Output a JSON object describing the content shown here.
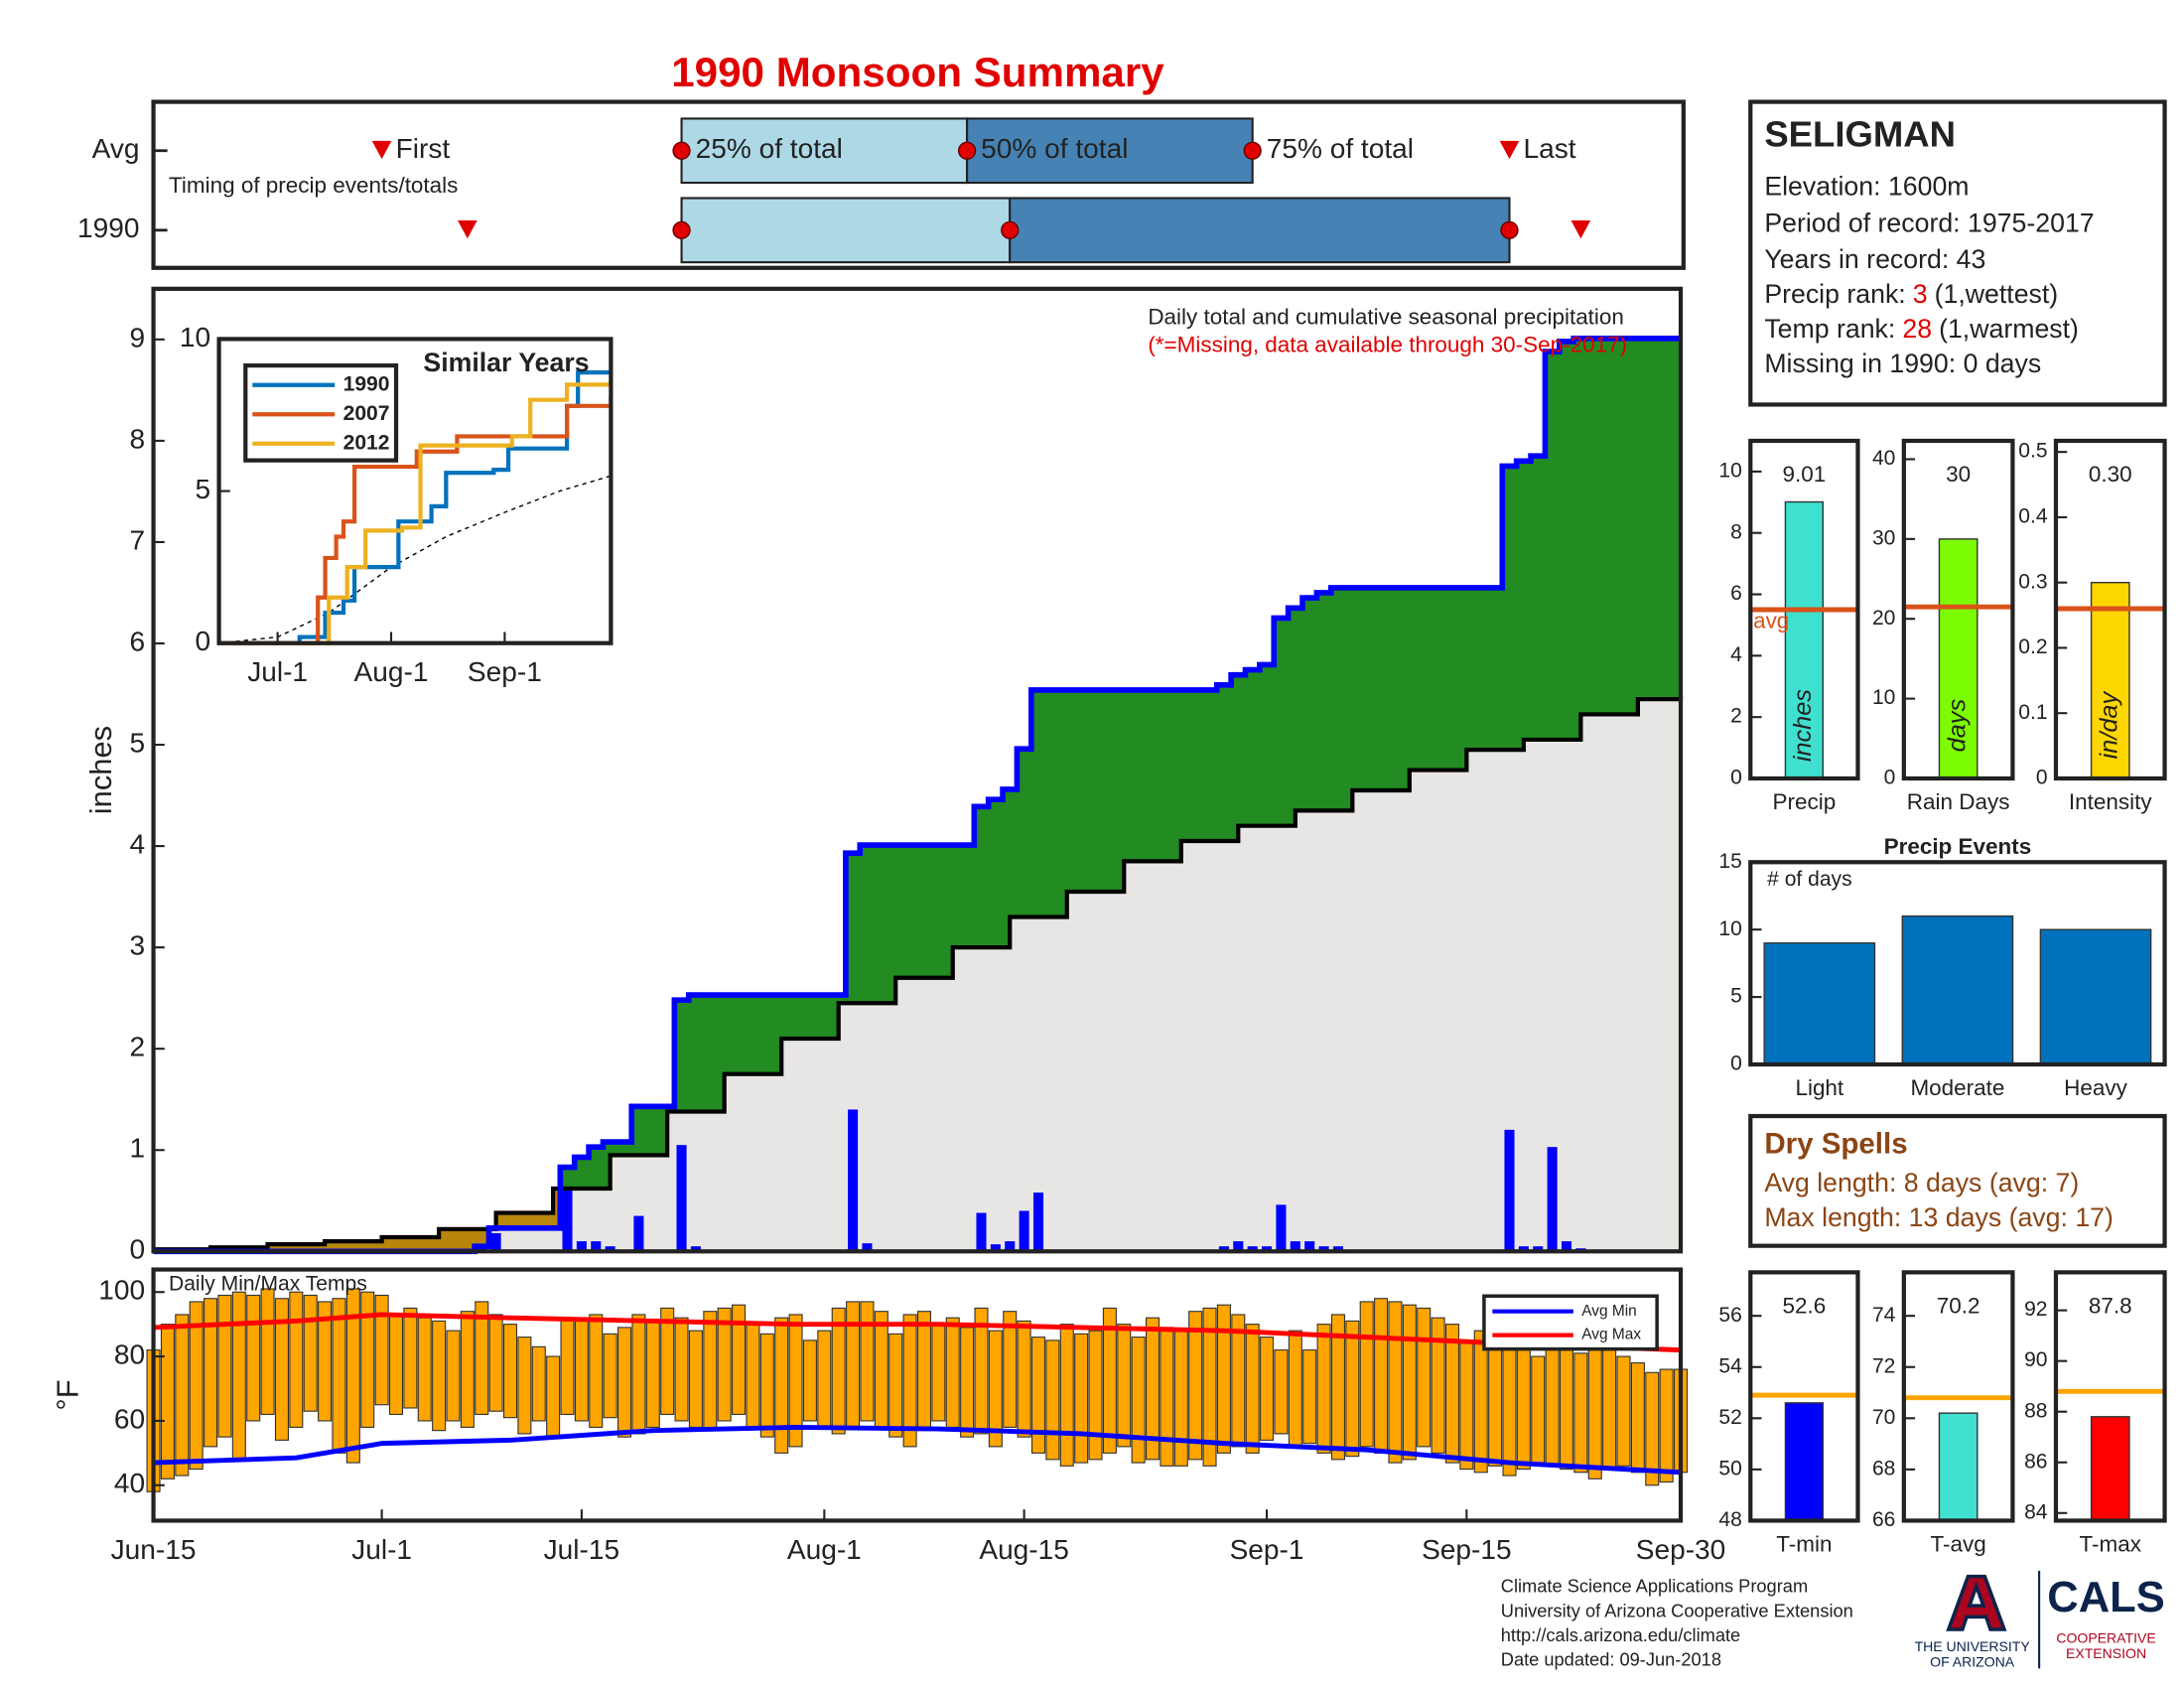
{
  "title": "1990 Monsoon Summary",
  "timing": {
    "note": "Timing of precip events/totals",
    "rows": [
      "Avg",
      "1990"
    ],
    "labels": [
      "First",
      "25% of total",
      "50% of total",
      "75% of total",
      "Last"
    ],
    "avg": [
      16,
      37,
      57,
      77,
      95
    ],
    "year": [
      22,
      37,
      60,
      95,
      100
    ],
    "colors": [
      "#add8e6",
      "#4682b4"
    ],
    "marker_color": "#e00000"
  },
  "chart_data": [
    {
      "type": "precip_cumulative",
      "title": "Daily total and cumulative seasonal precipitation",
      "subtitle": "(*=Missing, data available through 30-Sep-2017)",
      "ylabel": "inches",
      "xlim": [
        0,
        107
      ],
      "ylim": [
        0,
        9.5
      ],
      "yticks": [
        0,
        1,
        2,
        3,
        4,
        5,
        6,
        7,
        8,
        9
      ],
      "daily": {
        "x": [
          23,
          24,
          29,
          30,
          31,
          32,
          34,
          37,
          38,
          49,
          50,
          58,
          59,
          60,
          61,
          62,
          75,
          76,
          77,
          78,
          79,
          80,
          81,
          82,
          83,
          95,
          96,
          97,
          98,
          99,
          100
        ],
        "values": [
          0.05,
          0.18,
          0.6,
          0.1,
          0.1,
          0.05,
          0.35,
          1.05,
          0.05,
          1.4,
          0.08,
          0.38,
          0.07,
          0.1,
          0.4,
          0.58,
          0.05,
          0.1,
          0.05,
          0.05,
          0.46,
          0.1,
          0.1,
          0.05,
          0.05,
          1.2,
          0.05,
          0.05,
          1.03,
          0.1,
          0.03
        ],
        "color": "#0000ff"
      },
      "average": {
        "x": [
          0,
          4,
          8,
          12,
          16,
          20,
          24,
          28,
          32,
          36,
          40,
          44,
          48,
          52,
          56,
          60,
          64,
          68,
          72,
          76,
          80,
          84,
          88,
          92,
          96,
          100,
          104,
          107
        ],
        "values": [
          0.02,
          0.04,
          0.07,
          0.1,
          0.14,
          0.22,
          0.38,
          0.62,
          0.95,
          1.38,
          1.75,
          2.1,
          2.45,
          2.7,
          3.0,
          3.3,
          3.55,
          3.85,
          4.05,
          4.2,
          4.35,
          4.55,
          4.75,
          4.95,
          5.05,
          5.3,
          5.45,
          5.48
        ],
        "color": "#000000"
      },
      "fill_colors": {
        "above": "#228b22",
        "below": "#b8860b",
        "base": "#e8e6e4"
      }
    },
    {
      "type": "line",
      "title": "Similar Years",
      "xlim": [
        0,
        107
      ],
      "ylim": [
        0,
        10
      ],
      "yticks": [
        0,
        5,
        10
      ],
      "xticks": [
        {
          "value": 16,
          "label": "Jul-1"
        },
        {
          "value": 47,
          "label": "Aug-1"
        },
        {
          "value": 78,
          "label": "Sep-1"
        }
      ],
      "series": [
        {
          "name": "1990",
          "color": "#0072bd",
          "x": [
            0,
            22,
            29,
            34,
            37,
            49,
            58,
            62,
            75,
            79,
            95,
            98,
            107
          ],
          "values": [
            0,
            0.2,
            1,
            1.4,
            2.5,
            4,
            4.5,
            5.6,
            5.7,
            6.4,
            7.8,
            8.9,
            9
          ]
        },
        {
          "name": "2007",
          "color": "#d95319",
          "x": [
            0,
            24,
            27,
            29,
            32,
            34,
            37,
            50,
            54,
            63,
            65,
            90,
            95,
            107
          ],
          "values": [
            0,
            0,
            1.5,
            2.8,
            3.5,
            4,
            5.8,
            5.8,
            6.3,
            6.3,
            6.8,
            6.8,
            7.8,
            8.1
          ]
        },
        {
          "name": "2012",
          "color": "#edb120",
          "x": [
            0,
            27,
            30,
            35,
            40,
            50,
            55,
            65,
            80,
            85,
            95,
            107
          ],
          "values": [
            0,
            0,
            1.5,
            2.5,
            3.7,
            3.8,
            6.5,
            6.5,
            6.8,
            8,
            8.5,
            8.7
          ]
        }
      ],
      "average": {
        "x": [
          0,
          16,
          30,
          47,
          62,
          78,
          93,
          107
        ],
        "values": [
          0,
          0.2,
          1,
          2.5,
          3.5,
          4.3,
          5,
          5.5
        ],
        "color": "#000000"
      }
    },
    {
      "type": "range_bar",
      "title": "Daily Min/Max Temps",
      "ylabel": "°F",
      "xlim": [
        0,
        107
      ],
      "ylim": [
        29,
        107
      ],
      "yticks": [
        40,
        60,
        80,
        100
      ],
      "xticks": [
        {
          "value": 0,
          "label": "Jun-15"
        },
        {
          "value": 16,
          "label": "Jul-1"
        },
        {
          "value": 30,
          "label": "Jul-15"
        },
        {
          "value": 47,
          "label": "Aug-1"
        },
        {
          "value": 61,
          "label": "Aug-15"
        },
        {
          "value": 78,
          "label": "Sep-1"
        },
        {
          "value": 92,
          "label": "Sep-15"
        },
        {
          "value": 107,
          "label": "Sep-30"
        }
      ],
      "color": "#ffa500",
      "max": [
        82,
        90,
        93,
        97,
        98,
        99,
        100,
        99,
        101,
        98,
        100,
        99,
        97,
        98,
        101,
        100,
        99,
        93,
        95,
        92,
        91,
        88,
        94,
        97,
        93,
        90,
        86,
        83,
        80,
        92,
        91,
        93,
        87,
        89,
        93,
        91,
        95,
        92,
        88,
        94,
        95,
        96,
        90,
        87,
        92,
        93,
        85,
        88,
        95,
        97,
        97,
        94,
        87,
        93,
        94,
        90,
        92,
        89,
        95,
        88,
        94,
        91,
        86,
        85,
        90,
        87,
        88,
        95,
        90,
        86,
        92,
        89,
        88,
        94,
        95,
        96,
        93,
        90,
        86,
        82,
        88,
        82,
        90,
        93,
        91,
        97,
        98,
        97,
        96,
        95,
        92,
        90,
        85,
        88,
        87,
        85,
        83,
        80,
        84,
        82,
        81,
        83,
        82,
        80,
        78,
        75,
        76,
        76
      ],
      "min": [
        38,
        42,
        43,
        45,
        52,
        55,
        48,
        60,
        62,
        54,
        58,
        63,
        60,
        50,
        47,
        58,
        65,
        62,
        64,
        60,
        57,
        60,
        58,
        62,
        63,
        61,
        56,
        60,
        55,
        62,
        60,
        58,
        61,
        55,
        56,
        58,
        62,
        60,
        58,
        57,
        60,
        62,
        58,
        55,
        50,
        52,
        60,
        58,
        56,
        58,
        60,
        58,
        55,
        52,
        57,
        60,
        58,
        55,
        56,
        52,
        58,
        55,
        50,
        48,
        46,
        47,
        48,
        50,
        52,
        47,
        48,
        46,
        46,
        48,
        46,
        50,
        52,
        50,
        54,
        56,
        52,
        53,
        50,
        48,
        49,
        52,
        50,
        47,
        48,
        52,
        50,
        47,
        45,
        44,
        46,
        43,
        45,
        47,
        46,
        45,
        44,
        42,
        45,
        46,
        44,
        40,
        41,
        44
      ],
      "series": [
        {
          "name": "Avg Min",
          "color": "#0000ff",
          "x": [
            0,
            10,
            16,
            25,
            35,
            45,
            55,
            65,
            75,
            85,
            95,
            107
          ],
          "values": [
            47,
            48.5,
            53,
            54,
            57,
            58,
            57.5,
            56,
            53,
            51,
            47,
            44
          ]
        },
        {
          "name": "Avg Max",
          "color": "#ff0000",
          "x": [
            0,
            10,
            16,
            25,
            35,
            45,
            55,
            65,
            75,
            85,
            95,
            107
          ],
          "values": [
            89,
            91,
            93,
            92,
            91,
            90,
            90,
            89,
            88,
            86,
            84,
            82
          ]
        }
      ]
    },
    {
      "type": "bar",
      "categories": [
        "Precip"
      ],
      "values": [
        9.01
      ],
      "data_labels": true,
      "bar_text": "inches",
      "average": 5.5,
      "average_label": "avg",
      "average_color": "#d95319",
      "color": "#40e0d0",
      "ylim": [
        0,
        11
      ],
      "yticks": [
        0,
        2,
        4,
        6,
        8,
        10
      ]
    },
    {
      "type": "bar",
      "categories": [
        "Rain Days"
      ],
      "values": [
        30
      ],
      "data_labels": true,
      "bar_text": "days",
      "average": 21.5,
      "average_color": "#d95319",
      "color": "#7cfc00",
      "ylim": [
        0,
        42.3
      ],
      "yticks": [
        0,
        10,
        20,
        30,
        40
      ]
    },
    {
      "type": "bar",
      "categories": [
        "Intensity"
      ],
      "values": [
        0.3
      ],
      "value_labels": [
        "0.30"
      ],
      "data_labels": true,
      "bar_text": "in/day",
      "average": 0.26,
      "average_color": "#d95319",
      "color": "#ffd700",
      "ylim": [
        0,
        0.517
      ],
      "yticks": [
        0,
        0.1,
        0.2,
        0.3,
        0.4,
        0.5
      ]
    },
    {
      "type": "bar",
      "title": "Precip Events",
      "ylabel": "# of days",
      "categories": [
        "Light",
        "Moderate",
        "Heavy"
      ],
      "values": [
        9,
        11,
        10
      ],
      "color": "#0072bd",
      "ylim": [
        0,
        15
      ],
      "yticks": [
        0,
        5,
        10,
        15
      ]
    },
    {
      "type": "bar",
      "categories": [
        "T-min"
      ],
      "values": [
        52.6
      ],
      "data_labels": true,
      "average": 52.9,
      "average_color": "#ffa500",
      "color": "#0000ff",
      "ylim": [
        48,
        57.7
      ],
      "yticks": [
        48,
        50,
        52,
        54,
        56
      ]
    },
    {
      "type": "bar",
      "categories": [
        "T-avg"
      ],
      "values": [
        70.2
      ],
      "data_labels": true,
      "average": 70.8,
      "average_color": "#ffa500",
      "color": "#40e0d0",
      "ylim": [
        66,
        75.7
      ],
      "yticks": [
        66,
        68,
        70,
        72,
        74
      ]
    },
    {
      "type": "bar",
      "categories": [
        "T-max"
      ],
      "values": [
        87.8
      ],
      "data_labels": true,
      "average": 88.8,
      "average_color": "#ffa500",
      "color": "#ff0000",
      "ylim": [
        83.7,
        93.5
      ],
      "yticks": [
        84,
        86,
        88,
        90,
        92
      ]
    }
  ],
  "station": {
    "name": "SELIGMAN",
    "lines": [
      "Elevation: 1600m",
      "Period of record: 1975-2017",
      "Years in record: 43"
    ],
    "ranks": [
      {
        "label": "Precip rank:",
        "value": 3,
        "note": "(1,wettest)"
      },
      {
        "label": "Temp rank:",
        "value": 28,
        "note": "(1,warmest)"
      }
    ],
    "missing": "Missing in 1990: 0 days",
    "rank_color": "#e00000"
  },
  "dry_spells": {
    "title": "Dry Spells",
    "lines": [
      "Avg length: 8 days (avg: 7)",
      "Max length: 13 days (avg: 17)"
    ],
    "color": "#8b4513"
  },
  "footer": [
    "Climate Science Applications Program",
    "University of Arizona Cooperative Extension",
    "http://cals.arizona.edu/climate",
    "Date updated: 09-Jun-2018"
  ],
  "logos": {
    "university": [
      "THE UNIVERSITY",
      "OF ARIZONA"
    ],
    "cals": "CALS",
    "extension": [
      "COOPERATIVE",
      "EXTENSION"
    ]
  }
}
